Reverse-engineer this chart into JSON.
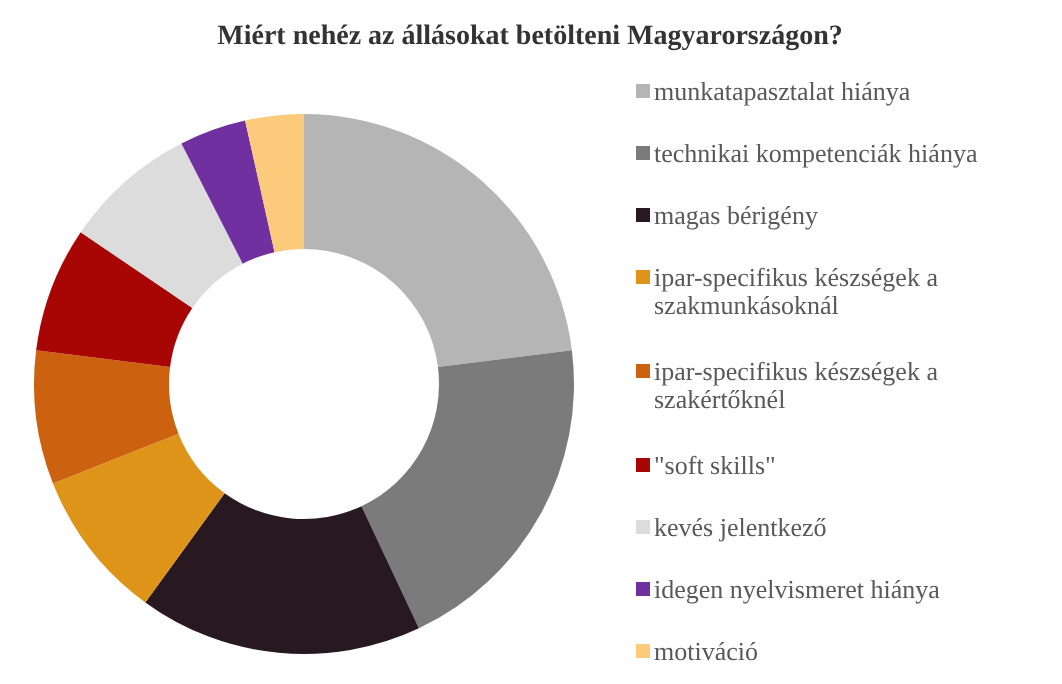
{
  "chart_data": {
    "type": "donut",
    "title": "Miért nehéz az állásokat betölteni  Magyarországon?",
    "categories": [
      "munkatapasztalat hiánya",
      "technikai kompetenciák hiánya",
      "magas bérigény",
      "ipar-specifikus készségek a szakmunkásoknál",
      "ipar-specifikus készségek a szakértőknél",
      "\"soft skills\"",
      "kevés jelentkező",
      "idegen nyelvismeret hiánya",
      "motiváció"
    ],
    "values": [
      23,
      20,
      17,
      9,
      8,
      7.5,
      8,
      4,
      3.5
    ],
    "colors": [
      "#b5b5b5",
      "#7b7b7b",
      "#281920",
      "#dd9419",
      "#cc6210",
      "#a80505",
      "#dcdcdc",
      "#7030a0",
      "#fcca7b"
    ],
    "legend": "right"
  }
}
